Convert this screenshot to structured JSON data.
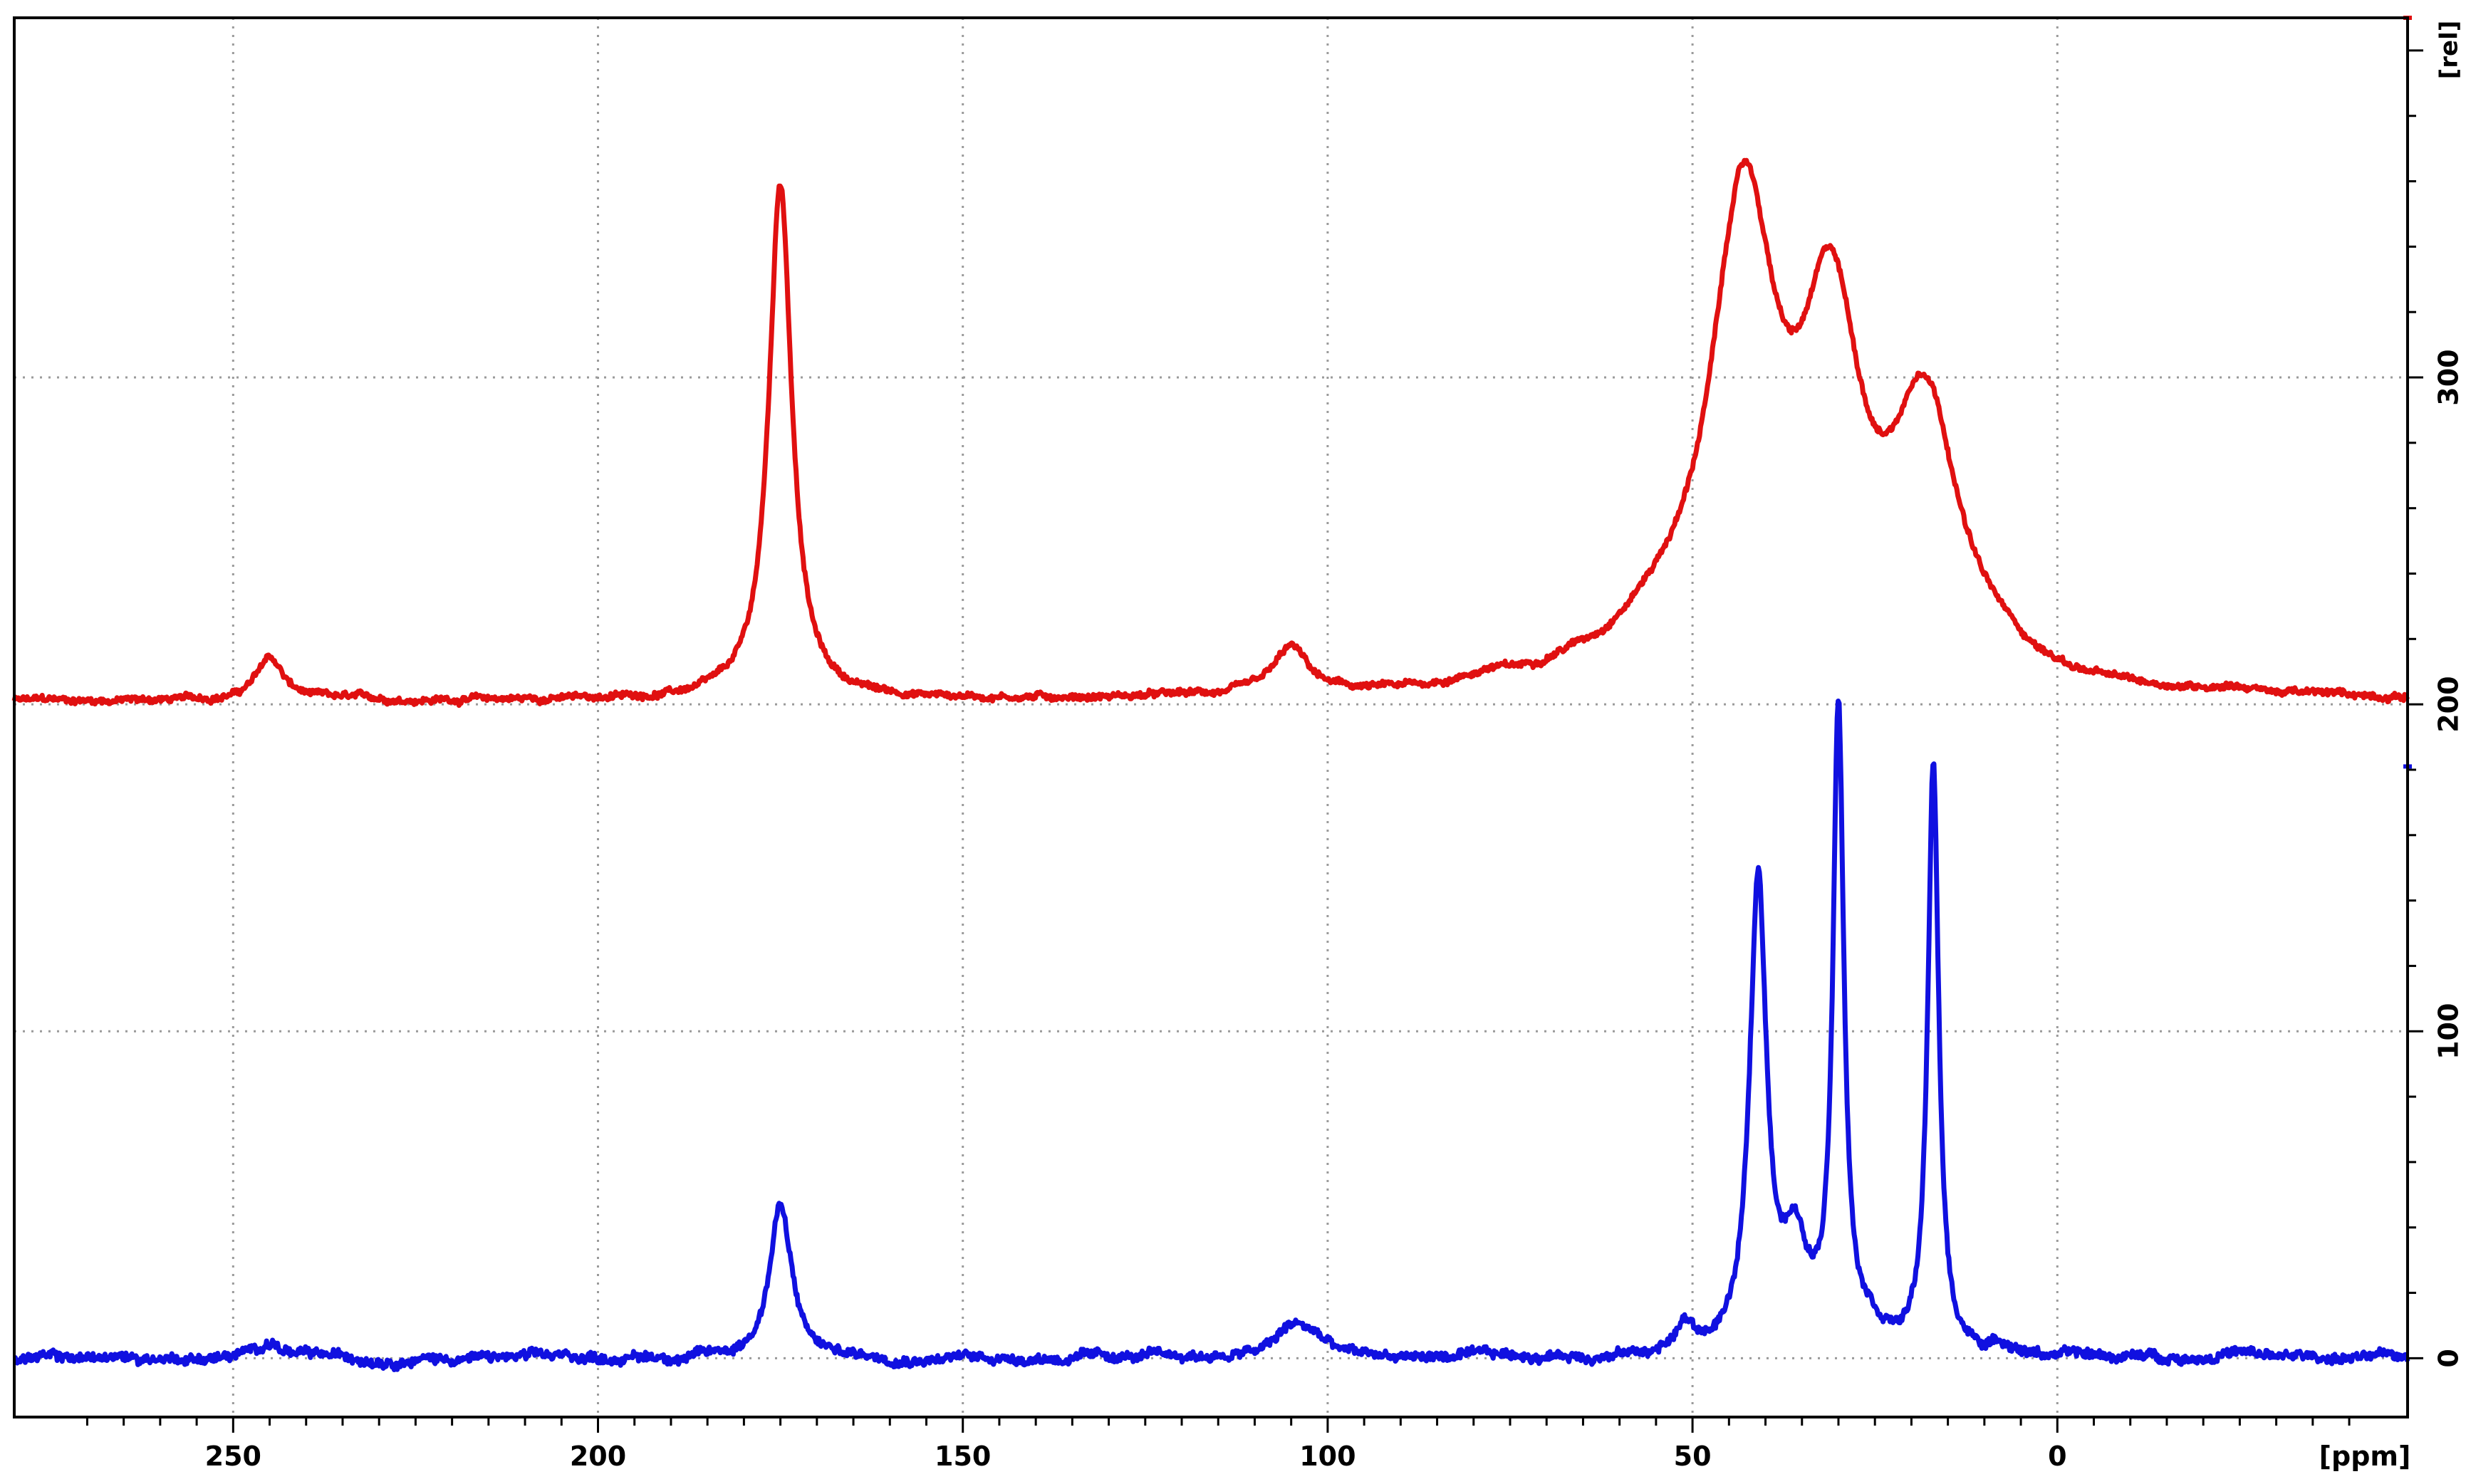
{
  "chart_data": {
    "type": "line",
    "title": "",
    "xlabel": "[ppm]",
    "ylabel": "[rel]",
    "xlim": [
      280,
      -48
    ],
    "ylim": [
      -18,
      410
    ],
    "x_axis_reversed": true,
    "grid": true,
    "grid_style": "dotted",
    "x_ticks": [
      250,
      200,
      150,
      100,
      50,
      0
    ],
    "x_tick_labels": [
      "250",
      "200",
      "150",
      "100",
      "50",
      "0"
    ],
    "y_ticks": [
      0,
      100,
      200,
      300
    ],
    "y_tick_labels": [
      "0",
      "100",
      "200",
      "300"
    ],
    "y_axis_position": "right",
    "series": [
      {
        "color": "#e01010",
        "baseline": 201,
        "noise": 1.0,
        "peaks": [
          {
            "x": 245,
            "h": 13,
            "w": 2.2
          },
          {
            "x": 175,
            "h": 158,
            "w": 1.9
          },
          {
            "x": 105,
            "h": 14,
            "w": 2.8
          },
          {
            "x": 78,
            "h": 3,
            "w": 4
          },
          {
            "x": 67,
            "h": 3,
            "w": 5
          },
          {
            "x": 55,
            "h": 12,
            "w": 8
          },
          {
            "x": 43,
            "h": 142,
            "w": 5.5
          },
          {
            "x": 31,
            "h": 100,
            "w": 5
          },
          {
            "x": 18,
            "h": 80,
            "w": 5.5
          },
          {
            "x": 8,
            "h": 4,
            "w": 5
          },
          {
            "x": -24,
            "h": 2,
            "w": 3
          }
        ]
      },
      {
        "color": "#1010e0",
        "baseline": 0,
        "noise": 1.5,
        "peaks": [
          {
            "x": 245,
            "h": 5,
            "w": 2
          },
          {
            "x": 175,
            "h": 47,
            "w": 1.8
          },
          {
            "x": 105,
            "h": 8,
            "w": 2.5
          },
          {
            "x": 102,
            "h": 5,
            "w": 2.5
          },
          {
            "x": 51,
            "h": 8,
            "w": 1.5
          },
          {
            "x": 41,
            "h": 142,
            "w": 1.4
          },
          {
            "x": 36,
            "h": 30,
            "w": 2.2
          },
          {
            "x": 30,
            "h": 194,
            "w": 0.9
          },
          {
            "x": 26,
            "h": 8,
            "w": 3
          },
          {
            "x": 17,
            "h": 180,
            "w": 0.9
          },
          {
            "x": 7,
            "h": 3,
            "w": 2
          },
          {
            "x": -24,
            "h": 2,
            "w": 2
          }
        ]
      }
    ]
  }
}
